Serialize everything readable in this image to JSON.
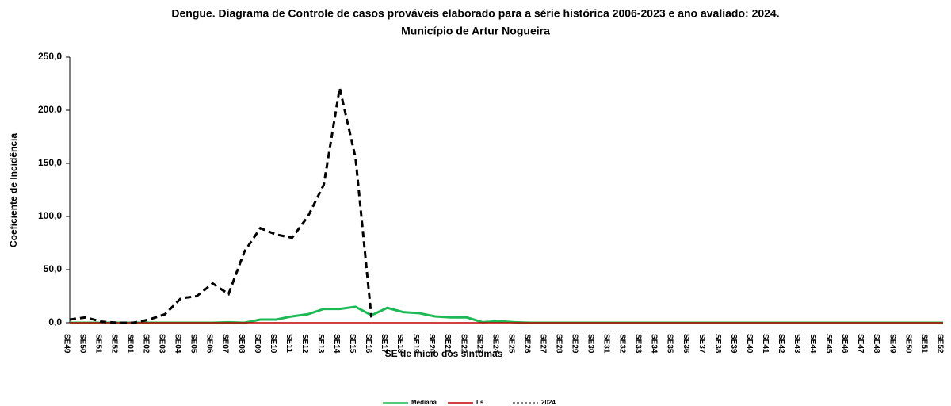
{
  "chart_data": {
    "type": "line",
    "title": "Dengue. Diagrama de Controle de casos prováveis  elaborado para a série histórica 2006-2023 e ano avaliado: 2024.",
    "subtitle": "Município de Artur Nogueira",
    "x_label": "SE de início dos sintomas",
    "y_label": "Coeficiente de Incidência",
    "categories": [
      "SE49",
      "SE50",
      "SE51",
      "SE52",
      "SE01",
      "SE02",
      "SE03",
      "SE04",
      "SE05",
      "SE06",
      "SE07",
      "SE08",
      "SE09",
      "SE10",
      "SE11",
      "SE12",
      "SE13",
      "SE14",
      "SE15",
      "SE16",
      "SE17",
      "SE18",
      "SE19",
      "SE20",
      "SE21",
      "SE22",
      "SE23",
      "SE24",
      "SE25",
      "SE26",
      "SE27",
      "SE28",
      "SE29",
      "SE30",
      "SE31",
      "SE32",
      "SE33",
      "SE34",
      "SE35",
      "SE36",
      "SE37",
      "SE38",
      "SE39",
      "SE40",
      "SE41",
      "SE42",
      "SE43",
      "SE44",
      "SE45",
      "SE46",
      "SE47",
      "SE48",
      "SE49",
      "SE50",
      "SE51",
      "SE52"
    ],
    "series": [
      {
        "name": "Mediana",
        "color": "#1db954",
        "dash": false,
        "values": [
          0,
          0,
          0,
          0,
          0,
          0,
          0,
          0,
          0,
          0,
          0.5,
          0,
          3,
          3,
          6,
          8,
          13,
          13,
          15,
          7,
          14,
          10,
          9,
          6,
          5,
          5,
          0.5,
          1.5,
          0.5,
          0,
          0,
          0,
          0,
          0,
          0,
          0,
          0,
          0,
          0,
          0,
          0,
          0,
          0,
          0,
          0,
          0,
          0,
          0,
          0,
          0,
          0,
          0,
          0,
          0,
          0,
          0
        ]
      },
      {
        "name": "Ls",
        "color": "#c00000",
        "dash": false,
        "values": [
          0,
          0,
          0,
          0,
          0,
          0,
          0,
          0,
          0,
          0,
          0,
          0,
          0,
          0,
          0,
          0,
          0,
          0,
          0,
          0,
          0,
          0,
          0,
          0,
          0,
          0,
          0,
          0,
          0,
          0,
          0,
          0,
          0,
          0,
          0,
          0,
          0,
          0,
          0,
          0,
          0,
          0,
          0,
          0,
          0,
          0,
          0,
          0,
          0,
          0,
          0,
          0,
          0,
          0,
          0,
          0
        ]
      },
      {
        "name": "2024",
        "color": "#000000",
        "dash": true,
        "values": [
          3,
          5,
          1,
          0,
          0,
          3,
          8,
          23,
          25,
          37,
          27,
          67,
          89,
          83,
          80,
          100,
          130,
          221,
          155,
          5,
          null,
          null,
          null,
          null,
          null,
          null,
          null,
          null,
          null,
          null,
          null,
          null,
          null,
          null,
          null,
          null,
          null,
          null,
          null,
          null,
          null,
          null,
          null,
          null,
          null,
          null,
          null,
          null,
          null,
          null,
          null,
          null,
          null,
          null,
          null,
          null
        ]
      }
    ],
    "ylim": [
      0,
      250
    ],
    "yticks": [
      {
        "value": 0,
        "label": "0,0"
      },
      {
        "value": 50,
        "label": "50,0"
      },
      {
        "value": 100,
        "label": "100,0"
      },
      {
        "value": 150,
        "label": "150,0"
      },
      {
        "value": 200,
        "label": "200,0"
      },
      {
        "value": 250,
        "label": "250,0"
      }
    ]
  }
}
